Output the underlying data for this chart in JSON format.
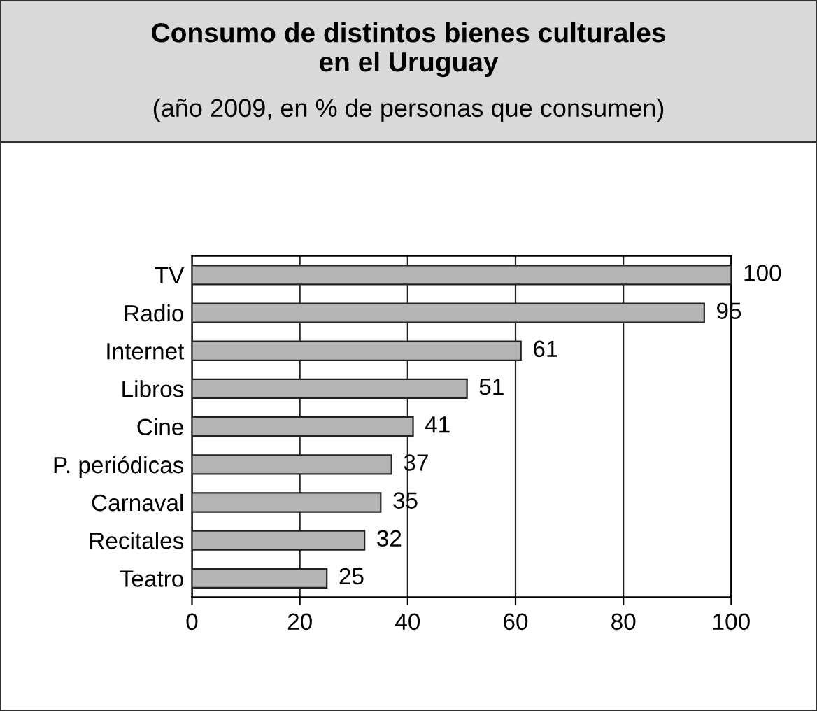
{
  "chart_data": {
    "type": "bar",
    "orientation": "horizontal",
    "title": "Consumo de distintos bienes culturales\nen el Uruguay",
    "subtitle": "(año 2009, en % de personas que consumen)",
    "categories": [
      "TV",
      "Radio",
      "Internet",
      "Libros",
      "Cine",
      "P. periódicas",
      "Carnaval",
      "Recitales",
      "Teatro"
    ],
    "values": [
      100,
      95,
      61,
      51,
      41,
      37,
      35,
      32,
      25
    ],
    "color": "#b4b4b4",
    "xlim": [
      0,
      100
    ],
    "xticks": [
      0,
      20,
      40,
      60,
      80,
      100
    ],
    "grid": "x",
    "data_labels": true
  }
}
